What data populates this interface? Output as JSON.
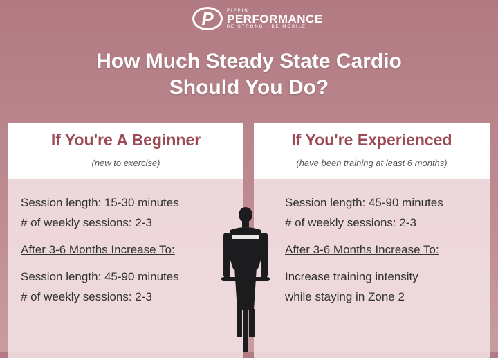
{
  "logo": {
    "mark": "P",
    "brand_small": "PIPPIN",
    "brand": "PERFORMANCE",
    "tagline": "BE STRONG · BE MOBILE"
  },
  "title": {
    "line1": "How Much Steady State Cardio",
    "line2": "Should You Do?"
  },
  "beginner": {
    "heading": "If You're A Beginner",
    "subheading": "(new to exercise)",
    "line1": "Session length: 15-30 minutes",
    "line2": "# of weekly sessions: 2-3",
    "increase_heading": "After 3-6 Months Increase To:",
    "line3": "Session length: 45-90 minutes",
    "line4": "# of weekly sessions: 2-3"
  },
  "experienced": {
    "heading": "If You're Experienced",
    "subheading": "(have been training at least 6 months)",
    "line1": "Session length: 45-90 minutes",
    "line2": "# of weekly sessions: 2-3",
    "increase_heading": "After 3-6 Months Increase To:",
    "line3": "Increase training intensity",
    "line4": "while staying in Zone 2"
  },
  "colors": {
    "background": "#b67f86",
    "heading": "#9c4a55"
  }
}
